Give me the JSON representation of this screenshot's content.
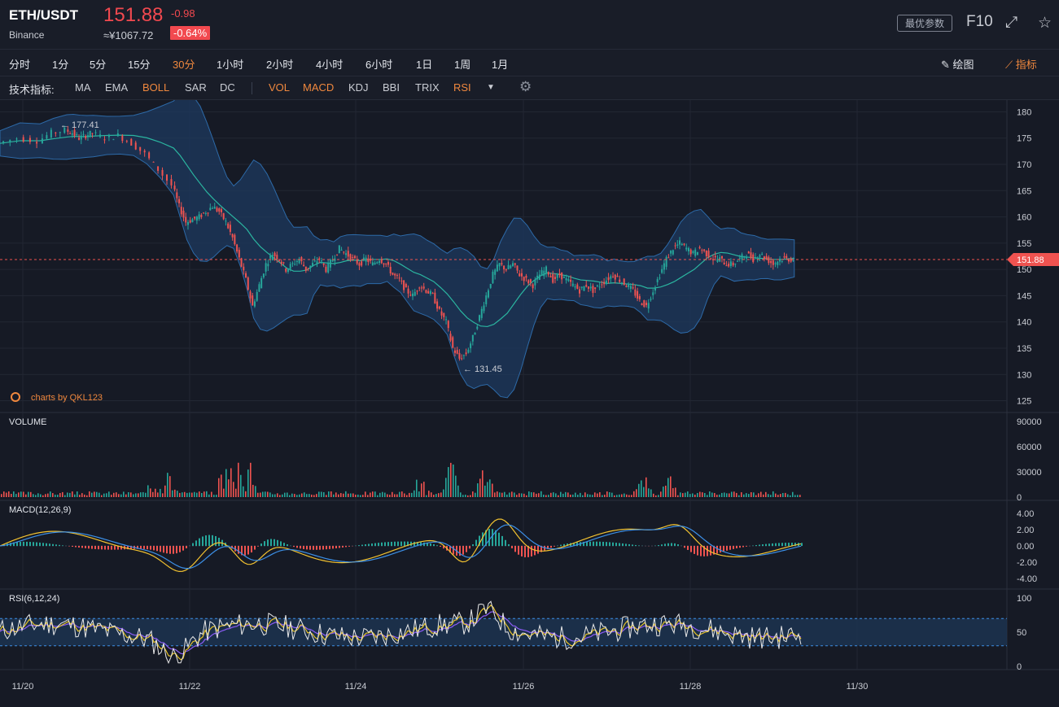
{
  "header": {
    "pair": "ETH/USDT",
    "exchange": "Binance",
    "price": "151.88",
    "change": "-0.98",
    "cny": "≈¥1067.72",
    "change_pct": "-0.64%",
    "best_params": "最优参数",
    "f10": "F10",
    "fullscreen_icon": "⤢",
    "star_icon": "☆"
  },
  "periods": [
    "分时",
    "1分",
    "5分",
    "15分",
    "30分",
    "1小时",
    "2小时",
    "4小时",
    "6小时",
    "1日",
    "1周",
    "1月"
  ],
  "active_period": "30分",
  "tools": {
    "draw": "绘图",
    "indicator": "指标"
  },
  "indicators": {
    "label": "技术指标:",
    "main": [
      {
        "name": "MA",
        "on": false
      },
      {
        "name": "EMA",
        "on": false
      },
      {
        "name": "BOLL",
        "on": true
      },
      {
        "name": "SAR",
        "on": false
      },
      {
        "name": "DC",
        "on": false
      }
    ],
    "sub": [
      {
        "name": "VOL",
        "on": true
      },
      {
        "name": "MACD",
        "on": true
      },
      {
        "name": "KDJ",
        "on": false
      },
      {
        "name": "BBI",
        "on": false
      },
      {
        "name": "TRIX",
        "on": false
      },
      {
        "name": "RSI",
        "on": true
      }
    ]
  },
  "colors": {
    "up": "#26a69a",
    "down": "#ef5350",
    "accent": "#f0883e",
    "band": "#1e3a5f",
    "mid": "#2bb5a0",
    "macd_dif": "#f2c230",
    "macd_dea": "#3c8fe6",
    "rsi6": "#e8e8e8",
    "rsi12": "#e6c229",
    "rsi24": "#8b5cf6",
    "rsi_zone": "#1d3453"
  },
  "chart_data": {
    "type": "candlestick",
    "main": {
      "yticks": [
        "180",
        "175",
        "170",
        "165",
        "160",
        "155",
        "150",
        "145",
        "140",
        "135",
        "130",
        "125"
      ],
      "ylim": [
        124,
        181
      ],
      "current_price": "151.88",
      "high_label": "← 177.41",
      "low_label": "← 131.45",
      "watermark": "charts by QKL123",
      "close_path": [
        [
          0,
          174
        ],
        [
          3,
          175
        ],
        [
          6,
          174.5
        ],
        [
          8,
          176
        ],
        [
          10,
          176.5
        ],
        [
          11,
          176
        ],
        [
          12,
          175
        ],
        [
          13,
          175.5
        ],
        [
          14,
          176
        ],
        [
          16,
          175
        ],
        [
          18,
          175.5
        ],
        [
          20,
          174
        ],
        [
          22,
          172
        ],
        [
          24,
          169
        ],
        [
          26,
          166
        ],
        [
          27,
          162
        ],
        [
          28,
          159
        ],
        [
          29,
          159.5
        ],
        [
          30,
          160
        ],
        [
          31,
          161
        ],
        [
          32,
          162
        ],
        [
          33,
          161
        ],
        [
          34,
          159
        ],
        [
          35,
          156
        ],
        [
          36,
          152
        ],
        [
          37,
          148
        ],
        [
          38,
          143
        ],
        [
          39,
          147
        ],
        [
          40,
          151
        ],
        [
          41,
          153
        ],
        [
          42,
          152
        ],
        [
          43,
          150
        ],
        [
          44,
          151
        ],
        [
          45,
          152
        ],
        [
          46,
          150
        ],
        [
          47,
          151
        ],
        [
          48,
          152
        ],
        [
          49,
          150
        ],
        [
          50,
          152
        ],
        [
          51,
          154
        ],
        [
          52,
          153
        ],
        [
          53,
          152
        ],
        [
          54,
          151
        ],
        [
          55,
          152
        ],
        [
          56,
          151
        ],
        [
          57,
          152
        ],
        [
          58,
          151
        ],
        [
          59,
          149
        ],
        [
          60,
          148
        ],
        [
          61,
          146
        ],
        [
          62,
          145
        ],
        [
          63,
          147
        ],
        [
          64,
          146
        ],
        [
          65,
          145
        ],
        [
          66,
          142
        ],
        [
          67,
          140
        ],
        [
          68,
          135
        ],
        [
          69,
          133
        ],
        [
          70,
          134
        ],
        [
          71,
          137
        ],
        [
          72,
          141
        ],
        [
          73,
          145
        ],
        [
          74,
          149
        ],
        [
          75,
          151
        ],
        [
          76,
          150
        ],
        [
          77,
          151
        ],
        [
          78,
          149
        ],
        [
          79,
          148
        ],
        [
          80,
          147
        ],
        [
          81,
          149
        ],
        [
          82,
          150
        ],
        [
          83,
          148
        ],
        [
          84,
          149
        ],
        [
          85,
          148
        ],
        [
          86,
          147
        ],
        [
          87,
          146
        ],
        [
          88,
          147
        ],
        [
          89,
          146
        ],
        [
          90,
          147
        ],
        [
          91,
          148
        ],
        [
          92,
          149
        ],
        [
          93,
          148
        ],
        [
          94,
          147
        ],
        [
          95,
          146
        ],
        [
          96,
          144
        ],
        [
          97,
          143
        ],
        [
          98,
          146
        ],
        [
          99,
          149
        ],
        [
          100,
          152
        ],
        [
          101,
          154
        ],
        [
          102,
          155
        ],
        [
          103,
          154
        ],
        [
          104,
          153
        ],
        [
          105,
          154
        ],
        [
          106,
          153
        ],
        [
          107,
          152
        ],
        [
          108,
          152
        ],
        [
          109,
          151
        ],
        [
          110,
          151
        ],
        [
          111,
          152
        ],
        [
          112,
          153
        ],
        [
          113,
          152
        ],
        [
          114,
          153
        ],
        [
          115,
          152
        ],
        [
          116,
          151
        ],
        [
          117,
          152
        ],
        [
          118,
          152
        ],
        [
          119,
          151.88
        ]
      ]
    },
    "volume": {
      "label": "VOLUME",
      "yticks": [
        "90000",
        "60000",
        "30000",
        "0"
      ],
      "ylim": [
        0,
        90000
      ]
    },
    "macd": {
      "label": "MACD(12,26,9)",
      "yticks": [
        "4.00",
        "2.00",
        "0.00",
        "-2.00",
        "-4.00"
      ],
      "ylim": [
        -4.5,
        4.5
      ]
    },
    "rsi": {
      "label": "RSI(6,12,24)",
      "yticks": [
        "100",
        "50",
        "0"
      ],
      "ylim": [
        0,
        100
      ],
      "bands": [
        70,
        30
      ]
    },
    "xticks": [
      "11/20",
      "11/22",
      "11/24",
      "11/26",
      "11/28",
      "11/30"
    ]
  }
}
